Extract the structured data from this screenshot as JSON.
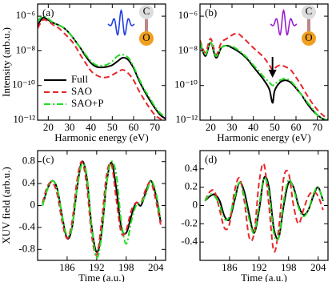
{
  "chart_data": [
    {
      "type": "line",
      "panel_label": "(a)",
      "xlabel": "Harmonic energy (eV)",
      "ylabel": "Intensity (arb.u.)",
      "log_y": true,
      "legend": true,
      "annotations": [
        "C",
        "O"
      ],
      "wave_color": "#1f3fe0",
      "xlim": [
        15,
        75
      ],
      "xticks": [
        20,
        30,
        40,
        50,
        60,
        70
      ],
      "ylim": [
        1e-12,
        5e-06
      ],
      "yticks": [
        {
          "value": 1e-06,
          "label": "10⁻⁶"
        },
        {
          "value": 1e-08,
          "label": "10⁻⁸"
        },
        {
          "value": 1e-10,
          "label": "10⁻¹⁰"
        },
        {
          "value": 1e-12,
          "label": "10⁻¹²"
        }
      ],
      "x": [
        15,
        17.5,
        20,
        22.5,
        25,
        27.5,
        30,
        32.5,
        35,
        37.5,
        40,
        42.5,
        45,
        47.5,
        50,
        52.5,
        55,
        57.5,
        60,
        62.5,
        65,
        67.5,
        70,
        72.5,
        75
      ],
      "series": [
        {
          "name": "Full",
          "color": "#000000",
          "dash": "solid",
          "values": [
            3e-07,
            8e-07,
            6e-07,
            4e-07,
            3e-07,
            2e-07,
            1e-07,
            4e-08,
            1.5e-08,
            5e-09,
            2e-09,
            1.2e-09,
            1.1e-09,
            1.2e-09,
            1.5e-09,
            2.5e-09,
            4e-09,
            3e-09,
            1e-09,
            2e-10,
            5e-11,
            1.5e-11,
            5e-12,
            2e-12,
            1.2e-12
          ]
        },
        {
          "name": "SAO",
          "color": "#e8262a",
          "dash": "dashed",
          "values": [
            2e-07,
            6e-07,
            5e-07,
            3e-07,
            2e-07,
            1e-07,
            5e-08,
            2e-08,
            6e-09,
            2e-09,
            7e-10,
            4e-10,
            3e-10,
            3e-10,
            4e-10,
            6e-10,
            8e-10,
            5e-10,
            2e-10,
            5e-11,
            1.5e-11,
            5e-12,
            2e-12,
            1.2e-12,
            1e-12
          ]
        },
        {
          "name": "SAO+P",
          "color": "#22dd22",
          "dash": "dashdot",
          "values": [
            5e-07,
            1e-06,
            7e-07,
            4e-07,
            3e-07,
            2e-07,
            1e-07,
            4e-08,
            1.5e-08,
            6e-09,
            2.5e-09,
            1.5e-09,
            1.4e-09,
            1.6e-09,
            2.5e-09,
            5e-09,
            6e-09,
            4e-09,
            1.2e-09,
            2.5e-10,
            6e-11,
            2e-11,
            6e-12,
            2.5e-12,
            1.5e-12
          ]
        }
      ]
    },
    {
      "type": "line",
      "panel_label": "(b)",
      "xlabel": "Harmonic energy (eV)",
      "log_y": true,
      "legend": false,
      "annotations": [
        "C",
        "O"
      ],
      "wave_color": "#9a1fd0",
      "arrow_x": 49,
      "xlim": [
        15,
        75
      ],
      "xticks": [
        20,
        30,
        40,
        50,
        60,
        70
      ],
      "ylim": [
        1e-12,
        5e-06
      ],
      "yticks": [
        {
          "value": 1e-06,
          "label": "10⁻⁶"
        },
        {
          "value": 1e-08,
          "label": "10⁻⁸"
        },
        {
          "value": 1e-10,
          "label": "10⁻¹⁰"
        },
        {
          "value": 1e-12,
          "label": "10⁻¹²"
        }
      ],
      "x": [
        15,
        17.5,
        20,
        22.5,
        25,
        27.5,
        30,
        32.5,
        35,
        37.5,
        40,
        42.5,
        45,
        47.5,
        49,
        50,
        52.5,
        55,
        57.5,
        60,
        62.5,
        65,
        67.5,
        70,
        72.5,
        75
      ],
      "series": [
        {
          "name": "Full",
          "color": "#000000",
          "dash": "solid",
          "values": [
            3e-08,
            5e-09,
            3e-08,
            4e-09,
            1.5e-08,
            2e-08,
            1.5e-08,
            1e-08,
            6e-09,
            3e-09,
            1.2e-09,
            5e-10,
            2e-10,
            6e-11,
            1e-11,
            5e-11,
            1.5e-10,
            2e-10,
            1.5e-10,
            7e-11,
            3e-11,
            1e-11,
            4e-12,
            2e-12,
            1.2e-12,
            1e-12
          ]
        },
        {
          "name": "SAO",
          "color": "#e8262a",
          "dash": "dashed",
          "values": [
            4e-08,
            8e-09,
            5e-08,
            6e-09,
            3e-08,
            5e-08,
            8e-08,
            1e-07,
            6e-08,
            3e-08,
            1.5e-08,
            8e-09,
            4e-09,
            1.5e-09,
            8e-10,
            1e-09,
            1.5e-09,
            1.2e-09,
            8e-10,
            3e-10,
            1e-10,
            3e-11,
            1e-11,
            4e-12,
            2e-12,
            1.2e-12
          ]
        },
        {
          "name": "SAO+P",
          "color": "#22dd22",
          "dash": "dashdot",
          "values": [
            3e-08,
            6e-09,
            3e-08,
            5e-09,
            1.5e-08,
            2e-08,
            1.8e-08,
            1.2e-08,
            7e-09,
            3.5e-09,
            1.5e-09,
            7e-10,
            3e-10,
            1.5e-10,
            1e-10,
            1.2e-10,
            2e-10,
            2.5e-10,
            1.8e-10,
            8e-11,
            3e-11,
            1.2e-11,
            5e-12,
            2e-12,
            1.2e-12,
            1e-12
          ]
        }
      ]
    },
    {
      "type": "line",
      "panel_label": "(c)",
      "xlabel": "Time (a.u.)",
      "ylabel": "XUV field (arb.u.)",
      "log_y": false,
      "legend": false,
      "xlim": [
        180,
        206
      ],
      "xticks": [
        186,
        192,
        198,
        204
      ],
      "ylim": [
        -1,
        1
      ],
      "yticks": [
        -0.8,
        -0.4,
        0,
        0.4,
        0.8
      ],
      "x": [
        181,
        182,
        183,
        184,
        185,
        186,
        187,
        188,
        189,
        190,
        191,
        192,
        193,
        194,
        195,
        196,
        197,
        198,
        199,
        200,
        201,
        202,
        203,
        204,
        205
      ],
      "series": [
        {
          "name": "Full",
          "color": "#000000",
          "dash": "solid",
          "values": [
            0.0,
            0.3,
            0.45,
            0.3,
            -0.2,
            -0.6,
            -0.4,
            0.3,
            0.8,
            0.5,
            -0.4,
            -0.85,
            -0.5,
            0.4,
            0.78,
            0.3,
            -0.4,
            -0.5,
            -0.2,
            0.05,
            0.0,
            0.25,
            0.45,
            0.2,
            -0.3
          ]
        },
        {
          "name": "SAO",
          "color": "#e8262a",
          "dash": "dashed",
          "values": [
            0.05,
            0.35,
            0.42,
            0.2,
            -0.3,
            -0.6,
            -0.3,
            0.45,
            0.8,
            0.35,
            -0.55,
            -0.9,
            -0.3,
            0.55,
            0.75,
            0.1,
            -0.5,
            -0.45,
            -0.1,
            0.05,
            0.05,
            0.3,
            0.42,
            0.1,
            -0.35
          ]
        },
        {
          "name": "SAO+P",
          "color": "#22dd22",
          "dash": "dashdot",
          "values": [
            0.0,
            0.3,
            0.45,
            0.3,
            -0.2,
            -0.55,
            -0.4,
            0.3,
            0.75,
            0.55,
            -0.4,
            -0.95,
            -0.55,
            0.4,
            0.8,
            0.55,
            -0.3,
            -0.7,
            -0.3,
            0.0,
            0.05,
            0.2,
            0.45,
            0.25,
            -0.25
          ]
        }
      ]
    },
    {
      "type": "line",
      "panel_label": "(d)",
      "xlabel": "Time (a.u.)",
      "log_y": false,
      "legend": false,
      "xlim": [
        180,
        206
      ],
      "xticks": [
        186,
        192,
        198,
        204
      ],
      "ylim": [
        -0.6,
        0.6
      ],
      "yticks": [
        -0.4,
        -0.2,
        0,
        0.2,
        0.4
      ],
      "x": [
        181,
        182,
        183,
        184,
        185,
        186,
        187,
        188,
        189,
        190,
        191,
        192,
        193,
        194,
        195,
        196,
        197,
        198,
        199,
        200,
        201,
        202,
        203,
        204,
        205
      ],
      "series": [
        {
          "name": "Full",
          "color": "#000000",
          "dash": "solid",
          "values": [
            0.05,
            0.1,
            0.12,
            0.05,
            -0.12,
            -0.15,
            0.05,
            0.25,
            0.15,
            -0.1,
            -0.3,
            -0.05,
            0.3,
            0.2,
            -0.25,
            -0.35,
            0.0,
            0.25,
            0.2,
            0.0,
            -0.1,
            -0.05,
            0.1,
            0.2,
            0.05
          ]
        },
        {
          "name": "SAO",
          "color": "#e8262a",
          "dash": "dashed",
          "values": [
            0.05,
            0.15,
            0.15,
            -0.05,
            -0.25,
            -0.2,
            0.15,
            0.3,
            0.05,
            -0.35,
            -0.3,
            0.25,
            0.45,
            0.0,
            -0.5,
            -0.25,
            0.3,
            0.35,
            0.0,
            -0.2,
            -0.05,
            0.1,
            0.15,
            0.1,
            -0.05
          ]
        },
        {
          "name": "SAO+P",
          "color": "#22dd22",
          "dash": "dashdot",
          "values": [
            0.05,
            0.12,
            0.1,
            0.0,
            -0.15,
            -0.12,
            0.08,
            0.25,
            0.1,
            -0.15,
            -0.3,
            0.0,
            0.3,
            0.15,
            -0.3,
            -0.35,
            0.05,
            0.28,
            0.18,
            -0.02,
            -0.12,
            -0.05,
            0.12,
            0.2,
            0.05
          ]
        }
      ]
    }
  ]
}
